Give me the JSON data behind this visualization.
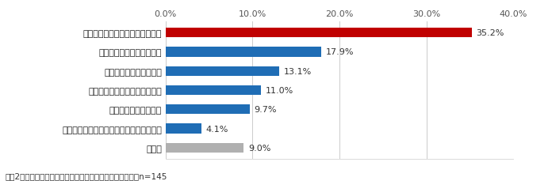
{
  "categories": [
    "どこで見られるのかが分からない",
    "自宅が安全だと思っている",
    "被災する実感がわかない",
    "どんな内容かがよく分からない",
    "存在自体知らなかった",
    "災害が起きた時に見ればいいと思っている",
    "その他"
  ],
  "values": [
    35.2,
    17.9,
    13.1,
    11.0,
    9.7,
    4.1,
    9.0
  ],
  "colors": [
    "#c00000",
    "#1f6db5",
    "#1f6db5",
    "#1f6db5",
    "#1f6db5",
    "#1f6db5",
    "#b0b0b0"
  ],
  "xlim": [
    0,
    40
  ],
  "xticks": [
    0,
    10,
    20,
    30,
    40
  ],
  "xtick_labels": [
    "0.0%",
    "10.0%",
    "20.0%",
    "30.0%",
    "40.0%"
  ],
  "caption": "＜囲2：自宅周辺のハザードマップを見たことがない理由＞n=145",
  "bg_color": "#ffffff",
  "bar_height": 0.5,
  "value_labels": [
    "35.2%",
    "17.9%",
    "13.1%",
    "11.0%",
    "9.7%",
    "4.1%",
    "9.0%"
  ],
  "label_fontsize": 8.0,
  "tick_fontsize": 8.0,
  "caption_fontsize": 7.5
}
